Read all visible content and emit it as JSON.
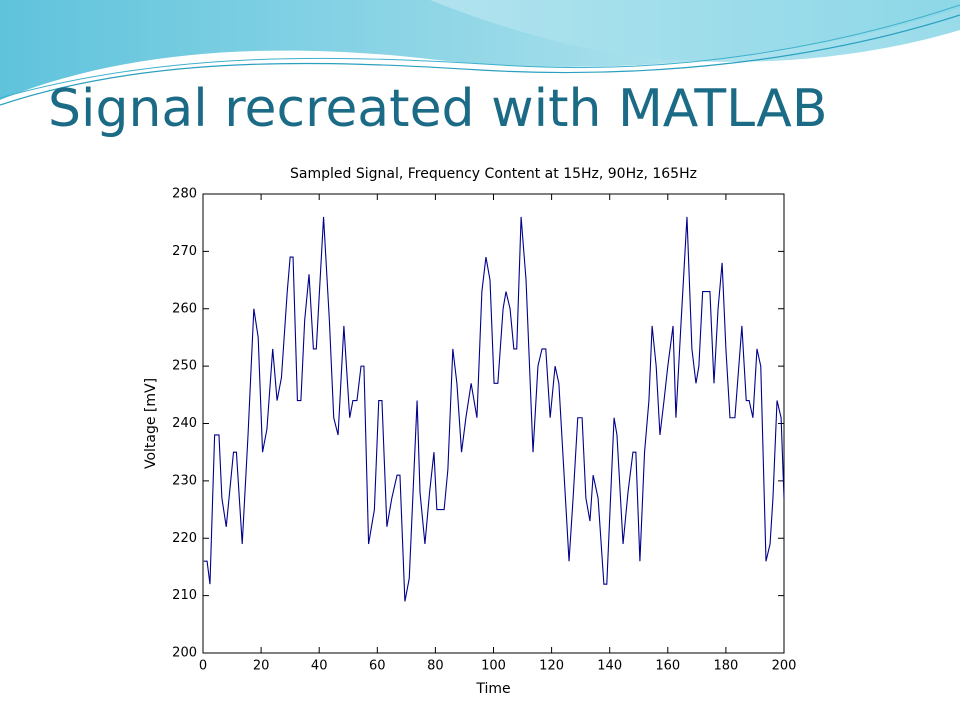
{
  "slide_title": "Signal recreated with MATLAB",
  "chart_data": {
    "type": "line",
    "title": "Sampled Signal, Frequency Content at 15Hz, 90Hz, 165Hz",
    "x_label": "Time",
    "y_label": "Voltage [mV]",
    "xlim": [
      0,
      200
    ],
    "ylim": [
      200,
      280
    ],
    "xticks": [
      0,
      20,
      40,
      60,
      80,
      100,
      120,
      140,
      160,
      180,
      200
    ],
    "yticks": [
      200,
      210,
      220,
      230,
      240,
      250,
      260,
      270,
      280
    ],
    "grid": false,
    "series": [
      {
        "color": "#00008b",
        "x": [
          0.3,
          1.4,
          2.4,
          4,
          5.5,
          6.5,
          8,
          10.5,
          11.5,
          13.5,
          15.5,
          17.5,
          19,
          20.5,
          22,
          24,
          25.5,
          27,
          29,
          30,
          31,
          32.5,
          33.7,
          35,
          36.5,
          38,
          39,
          41.5,
          43.5,
          45,
          46.5,
          48.5,
          50.5,
          51.6,
          53,
          54.4,
          55.4,
          57,
          59,
          60.5,
          61.6,
          63.3,
          65,
          66.8,
          67.8,
          69.5,
          71,
          73.7,
          74.7,
          76.4,
          78,
          79.5,
          80.5,
          83,
          84.3,
          86,
          87.4,
          89,
          90.5,
          92.3,
          94.3,
          96,
          97.4,
          98.8,
          100.2,
          101.5,
          103.3,
          104.3,
          105.7,
          107,
          108,
          109.5,
          111.2,
          113.6,
          115.3,
          116.7,
          118,
          119.5,
          121.2,
          122.5,
          126,
          127.4,
          129,
          130.5,
          131.8,
          133.2,
          134.3,
          136,
          138,
          139,
          141.5,
          142.5,
          144.6,
          146.3,
          148,
          149,
          150.4,
          152,
          153.5,
          154.6,
          156,
          157.3,
          158.7,
          160,
          161.8,
          162.8,
          164.5,
          166.6,
          168.3,
          169.7,
          170.7,
          172,
          174.5,
          175.9,
          177.3,
          178.7,
          180,
          181.4,
          183.1,
          185.5,
          187,
          188,
          189.3,
          190.7,
          192,
          193.8,
          195.2,
          196.2,
          197.6,
          199,
          200
        ],
        "values": [
          216,
          216,
          212,
          238,
          238,
          227,
          222,
          235,
          235,
          219,
          238,
          260,
          255,
          235,
          239,
          253,
          244,
          248,
          263,
          269,
          269,
          244,
          244,
          258,
          266,
          253,
          253,
          276,
          258,
          241,
          238,
          257,
          241,
          244,
          244,
          250,
          250,
          219,
          225,
          244,
          244,
          222,
          227,
          231,
          231,
          209,
          213,
          244,
          228,
          219,
          228,
          235,
          225,
          225,
          232,
          253,
          247,
          235,
          241,
          247,
          241,
          263,
          269,
          265,
          247,
          247,
          260,
          263,
          260,
          253,
          253,
          276,
          265,
          235,
          250,
          253,
          253,
          241,
          250,
          247,
          216,
          227,
          241,
          241,
          227,
          223,
          231,
          227,
          212,
          212,
          241,
          238,
          219,
          228,
          235,
          235,
          216,
          235,
          244,
          257,
          250,
          238,
          244,
          250,
          257,
          241,
          257,
          276,
          253,
          247,
          250,
          263,
          263,
          247,
          260,
          268,
          253,
          241,
          241,
          257,
          244,
          244,
          241,
          253,
          250,
          216,
          219,
          227,
          244,
          241,
          227
        ]
      }
    ]
  }
}
